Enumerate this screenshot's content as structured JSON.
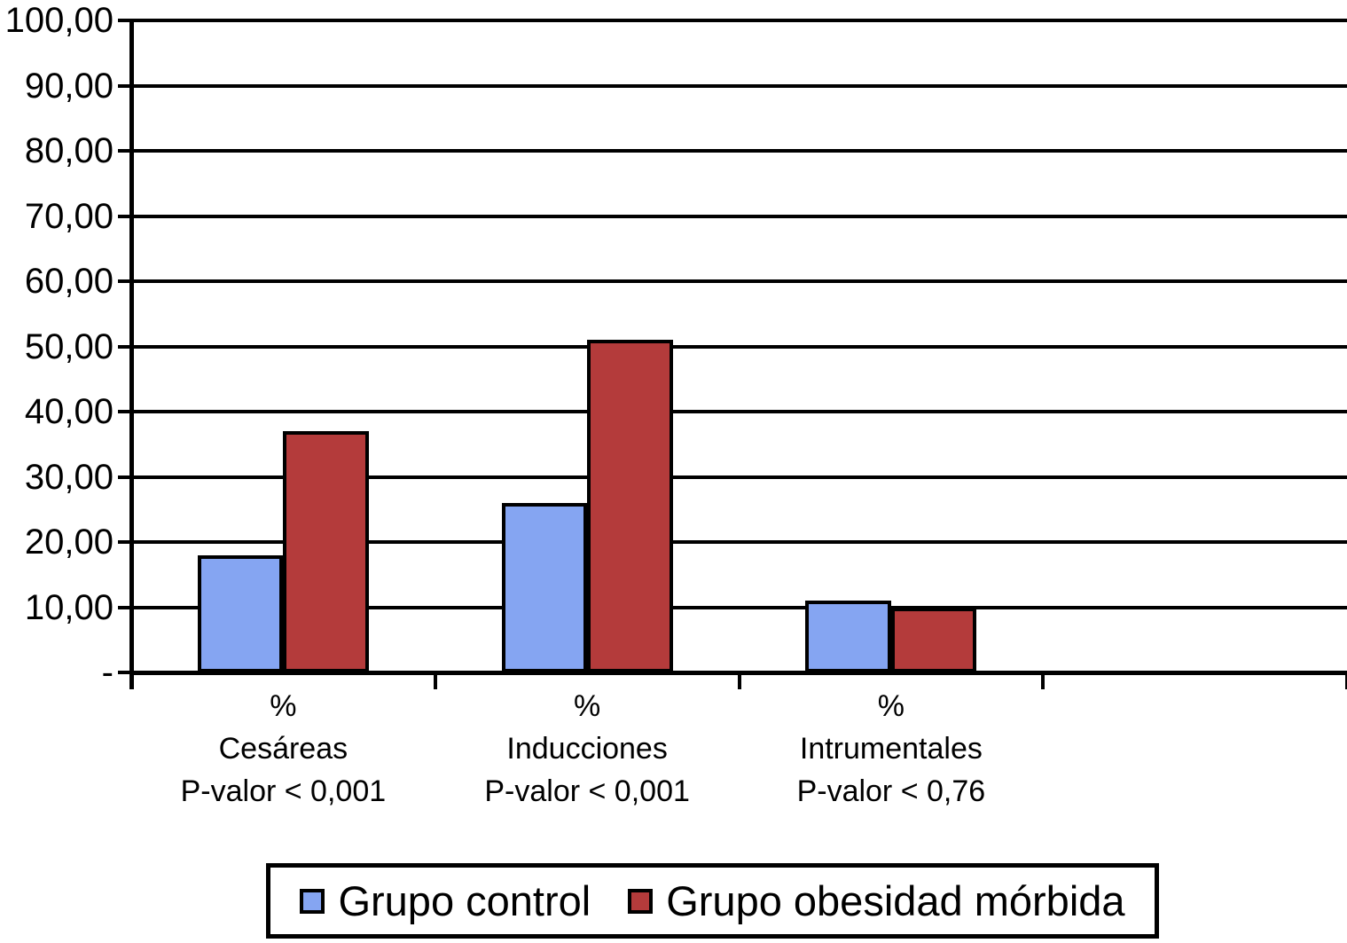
{
  "chart_data": {
    "type": "bar",
    "title": "",
    "xlabel": "",
    "ylabel": "",
    "grid": true,
    "legend_position": "bottom",
    "ylim": [
      0,
      100
    ],
    "y_axis": {
      "min": 0,
      "max": 100,
      "step": 10,
      "tick_labels_top_to_bottom": [
        "100,00",
        "90,00",
        "80,00",
        "70,00",
        "60,00",
        "50,00",
        "40,00",
        "30,00",
        "20,00",
        "10,00",
        "-"
      ],
      "zero_label": "-"
    },
    "x_axis": {
      "slots": 4,
      "occupied_slots": 3
    },
    "categories": [
      {
        "label_lines": [
          "%",
          "Cesáreas",
          "P-valor < 0,001"
        ]
      },
      {
        "label_lines": [
          "%",
          "Inducciones",
          "P-valor < 0,001"
        ]
      },
      {
        "label_lines": [
          "%",
          "Intrumentales",
          "P-valor < 0,76"
        ]
      }
    ],
    "series": [
      {
        "name": "Grupo control",
        "color": "#85A5F2",
        "border_color": "#000000",
        "values": [
          18,
          26,
          11
        ]
      },
      {
        "name": "Grupo obesidad mórbida",
        "color": "#B43B3B",
        "border_color": "#000000",
        "values": [
          37,
          51,
          10
        ]
      }
    ]
  }
}
